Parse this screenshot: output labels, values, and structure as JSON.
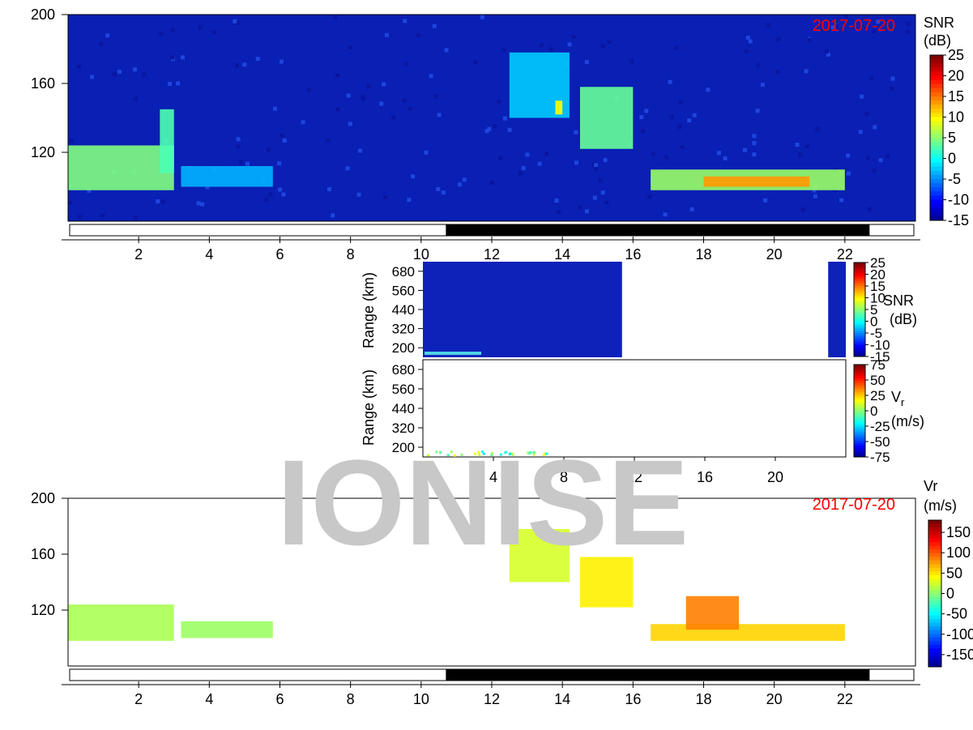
{
  "watermark": "IONISE",
  "colors": {
    "date_label": "#ff0000",
    "watermark": "#c8c8c8",
    "night_bar": "#000000",
    "background_noise": "#0a1fb4"
  },
  "chart_data": [
    {
      "type": "heatmap",
      "name": "snr_daily",
      "date_label": "2017-07-20",
      "xlim": [
        0,
        24
      ],
      "ylim": [
        80,
        200
      ],
      "x_ticks": [
        "2",
        "4",
        "6",
        "8",
        "10",
        "12",
        "14",
        "16",
        "18",
        "20",
        "22"
      ],
      "y_ticks": [
        "120",
        "160",
        "200"
      ],
      "colorbar": {
        "title": "SNR",
        "unit": "(dB)",
        "ticks": [
          "25",
          "20",
          "15",
          "10",
          "5",
          "0",
          "-5",
          "-10",
          "-15"
        ],
        "range": [
          -15,
          25
        ]
      },
      "night_interval": [
        10.7,
        22.7
      ],
      "features": [
        {
          "x0": 0.0,
          "x1": 3.0,
          "y0": 98,
          "y1": 124,
          "value": 5
        },
        {
          "x0": 2.6,
          "x1": 3.0,
          "y0": 108,
          "y1": 145,
          "value": 3
        },
        {
          "x0": 3.2,
          "x1": 5.8,
          "y0": 100,
          "y1": 112,
          "value": -3
        },
        {
          "x0": 12.5,
          "x1": 14.2,
          "y0": 140,
          "y1": 178,
          "value": -2
        },
        {
          "x0": 13.8,
          "x1": 14.0,
          "y0": 142,
          "y1": 150,
          "value": 10
        },
        {
          "x0": 14.5,
          "x1": 16.0,
          "y0": 122,
          "y1": 158,
          "value": 4
        },
        {
          "x0": 16.5,
          "x1": 22.0,
          "y0": 98,
          "y1": 110,
          "value": 6
        },
        {
          "x0": 18.0,
          "x1": 21.0,
          "y0": 100,
          "y1": 106,
          "value": 14
        }
      ]
    },
    {
      "type": "heatmap",
      "name": "snr_range_detail",
      "xlim": [
        0,
        24
      ],
      "y_axis_label": "Range (km)",
      "y_ticks": [
        "200",
        "320",
        "440",
        "560",
        "680"
      ],
      "colorbar": {
        "title": "SNR",
        "unit": "(dB)",
        "ticks": [
          "25",
          "20",
          "15",
          "10",
          "5",
          "0",
          "-5",
          "-10",
          "-15"
        ],
        "range": [
          -15,
          25
        ]
      },
      "data_intervals": [
        [
          0,
          11.3
        ],
        [
          23.0,
          24.0
        ]
      ]
    },
    {
      "type": "scatter",
      "name": "vr_range_detail",
      "xlim": [
        0,
        24
      ],
      "x_ticks": [
        "4",
        "8",
        "12",
        "16",
        "20"
      ],
      "y_axis_label": "Range (km)",
      "y_ticks": [
        "200",
        "320",
        "440",
        "560",
        "680"
      ],
      "colorbar": {
        "title": "V",
        "subscript": "r",
        "unit": "(m/s)",
        "ticks": [
          "75",
          "50",
          "25",
          "0",
          "-25",
          "-50",
          "-75"
        ],
        "range": [
          -75,
          75
        ]
      }
    },
    {
      "type": "heatmap",
      "name": "vr_daily",
      "date_label": "2017-07-20",
      "xlim": [
        0,
        24
      ],
      "ylim": [
        80,
        200
      ],
      "x_ticks": [
        "2",
        "4",
        "6",
        "8",
        "10",
        "12",
        "14",
        "16",
        "18",
        "20",
        "22"
      ],
      "y_ticks": [
        "120",
        "160",
        "200"
      ],
      "colorbar": {
        "title": "Vr",
        "unit": "(m/s)",
        "ticks": [
          "150",
          "100",
          "50",
          "0",
          "-50",
          "-100",
          "-150"
        ],
        "range": [
          -180,
          180
        ]
      },
      "night_interval": [
        10.7,
        22.7
      ],
      "features": [
        {
          "x0": 0.0,
          "x1": 3.0,
          "y0": 98,
          "y1": 124,
          "value": 15
        },
        {
          "x0": 3.2,
          "x1": 5.8,
          "y0": 100,
          "y1": 112,
          "value": 10
        },
        {
          "x0": 12.5,
          "x1": 14.2,
          "y0": 140,
          "y1": 178,
          "value": 30
        },
        {
          "x0": 14.5,
          "x1": 16.0,
          "y0": 122,
          "y1": 158,
          "value": 50
        },
        {
          "x0": 16.5,
          "x1": 22.0,
          "y0": 98,
          "y1": 110,
          "value": 60
        },
        {
          "x0": 17.5,
          "x1": 19.0,
          "y0": 106,
          "y1": 130,
          "value": 90
        }
      ]
    }
  ]
}
